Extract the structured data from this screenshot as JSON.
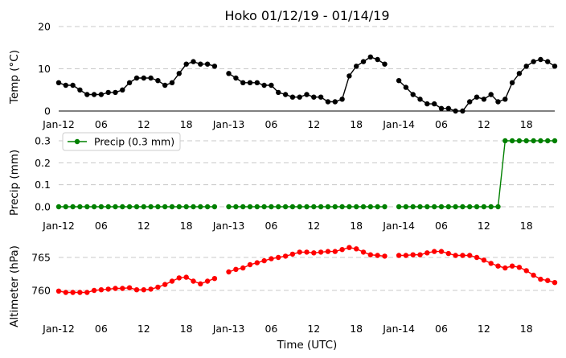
{
  "title": "Hoko 01/12/19 - 01/14/19",
  "xlabel": "Time (UTC)",
  "x_tick_labels": [
    "Jan-12",
    "06",
    "12",
    "18",
    "Jan-13",
    "06",
    "12",
    "18",
    "Jan-14",
    "06",
    "12",
    "18"
  ],
  "chart_data": [
    {
      "type": "line",
      "ylabel": "Temp (°C)",
      "ylim": [
        0,
        20
      ],
      "yticks": [
        "0",
        "10",
        "20"
      ],
      "grid": "horizontal dashed",
      "color": "#000000",
      "x_start_hour": 0,
      "x_step_hours": 1,
      "values": [
        6.7,
        6.1,
        6.1,
        5.0,
        3.9,
        3.9,
        3.9,
        4.4,
        4.4,
        5.0,
        6.7,
        7.8,
        7.8,
        7.8,
        7.2,
        6.1,
        6.7,
        8.9,
        11.1,
        11.7,
        11.1,
        11.1,
        10.6,
        null,
        8.9,
        7.8,
        6.7,
        6.7,
        6.7,
        6.1,
        6.1,
        4.4,
        3.9,
        3.3,
        3.3,
        3.9,
        3.3,
        3.3,
        2.2,
        2.2,
        2.8,
        8.3,
        10.6,
        11.7,
        12.8,
        12.2,
        11.1,
        null,
        7.2,
        5.6,
        3.9,
        2.8,
        1.7,
        1.7,
        0.6,
        0.6,
        0.0,
        0.0,
        2.2,
        3.3,
        2.8,
        3.9,
        2.2,
        2.8,
        6.7,
        8.9,
        10.6,
        11.7,
        12.2,
        11.7,
        10.6
      ]
    },
    {
      "type": "line",
      "ylabel": "Precip (mm)",
      "ylim": [
        0,
        0.3
      ],
      "yticks": [
        "0.0",
        "0.1",
        "0.2",
        "0.3"
      ],
      "grid": "horizontal dashed",
      "color": "#008000",
      "legend": "Precip (0.3 mm)",
      "legend_position": "top-left",
      "x_start_hour": 0,
      "x_step_hours": 1,
      "values": [
        0,
        0,
        0,
        0,
        0,
        0,
        0,
        0,
        0,
        0,
        0,
        0,
        0,
        0,
        0,
        0,
        0,
        0,
        0,
        0,
        0,
        0,
        0,
        null,
        0,
        0,
        0,
        0,
        0,
        0,
        0,
        0,
        0,
        0,
        0,
        0,
        0,
        0,
        0,
        0,
        0,
        0,
        0,
        0,
        0,
        0,
        0,
        null,
        0,
        0,
        0,
        0,
        0,
        0,
        0,
        0,
        0,
        0,
        0,
        0,
        0,
        0,
        0,
        0.3,
        0.3,
        0.3,
        0.3,
        0.3,
        0.3,
        0.3,
        0.3
      ]
    },
    {
      "type": "line",
      "ylabel": "Altimeter (hPa)",
      "ylim": [
        755,
        768
      ],
      "yticks": [
        "760",
        "765"
      ],
      "grid": "horizontal dashed",
      "color": "#ff0000",
      "x_start_hour": 0,
      "x_step_hours": 1,
      "values": [
        759.9,
        759.7,
        759.7,
        759.7,
        759.7,
        760.0,
        760.1,
        760.2,
        760.3,
        760.3,
        760.4,
        760.1,
        760.1,
        760.2,
        760.5,
        760.9,
        761.4,
        761.9,
        762.0,
        761.4,
        761.0,
        761.4,
        761.8,
        null,
        762.8,
        763.2,
        763.4,
        763.9,
        764.2,
        764.5,
        764.8,
        765.0,
        765.2,
        765.5,
        765.8,
        765.8,
        765.7,
        765.8,
        765.9,
        765.9,
        766.2,
        766.5,
        766.3,
        765.8,
        765.4,
        765.3,
        765.2,
        null,
        765.3,
        765.3,
        765.4,
        765.4,
        765.7,
        765.9,
        765.9,
        765.6,
        765.3,
        765.3,
        765.3,
        765.0,
        764.6,
        764.1,
        763.7,
        763.4,
        763.7,
        763.5,
        763.0,
        762.3,
        761.7,
        761.5,
        761.2
      ]
    }
  ]
}
